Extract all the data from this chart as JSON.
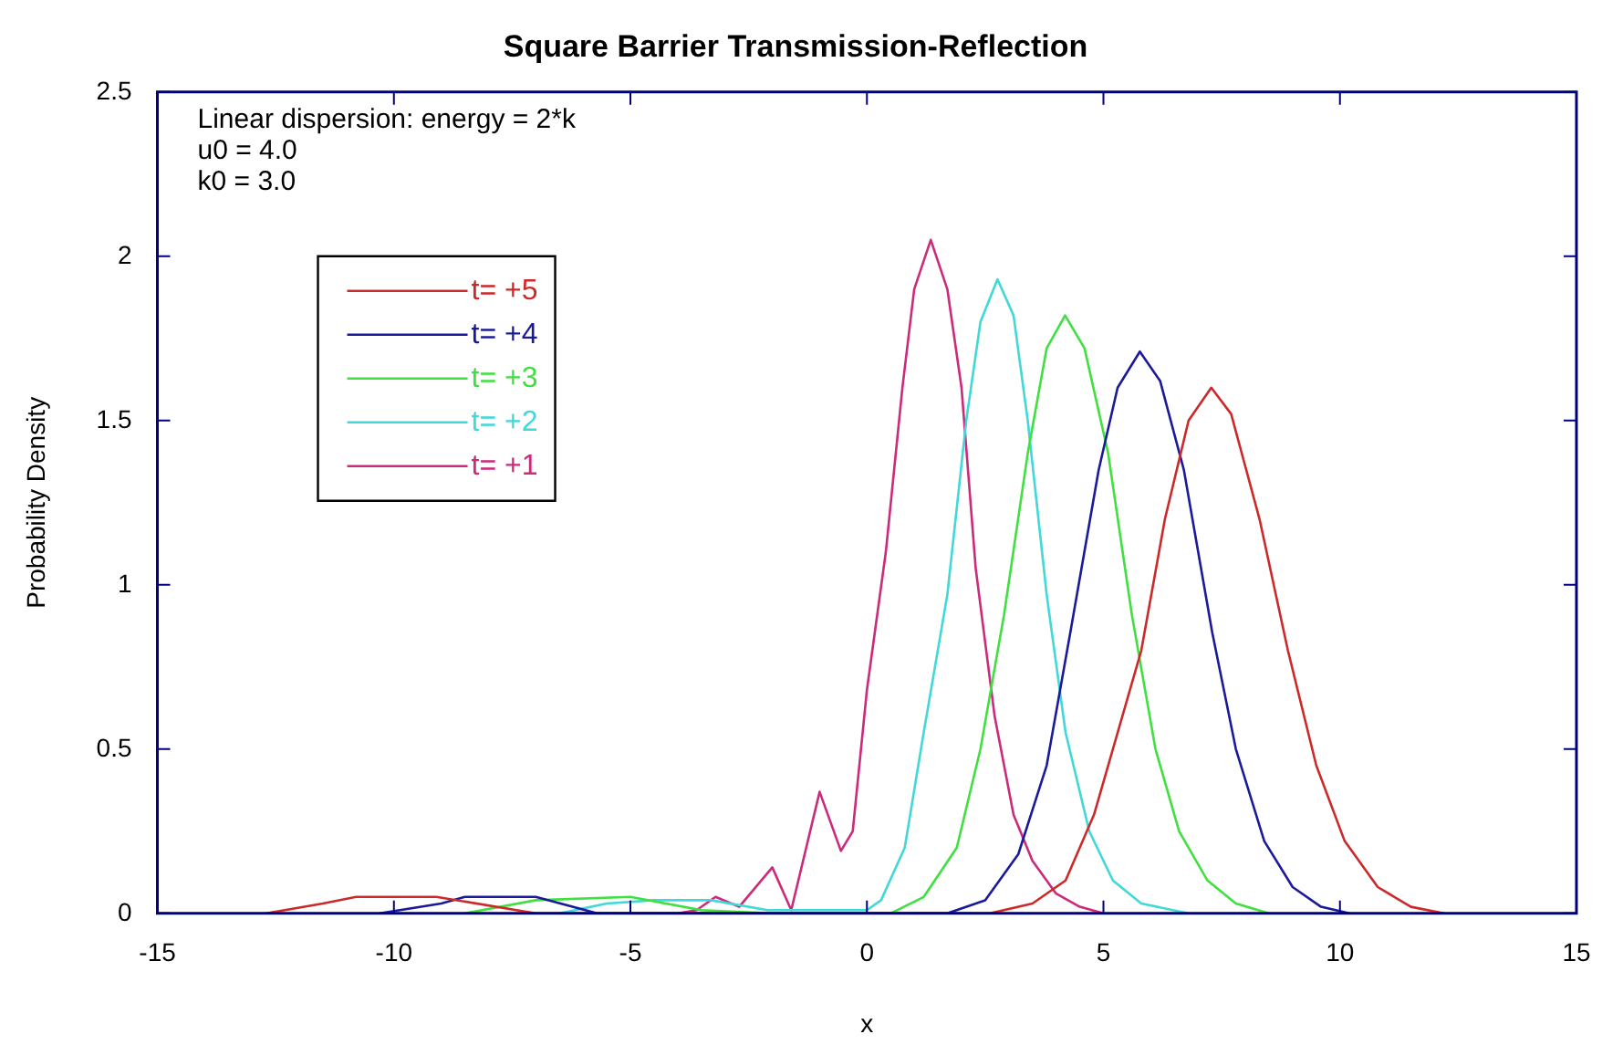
{
  "chart_data": {
    "type": "line",
    "title": "Square Barrier Transmission-Reflection",
    "xlabel": "x",
    "ylabel": "Probability Density",
    "xlim": [
      -15,
      15
    ],
    "xticks": [
      -15,
      -10,
      -5,
      0,
      5,
      10,
      15
    ],
    "ylim": [
      0,
      2.5
    ],
    "yticks": [
      0,
      0.5,
      1,
      1.5,
      2,
      2.5
    ],
    "grid": false,
    "legend": "top left",
    "marker": "none",
    "line_style": "solid",
    "annotations": [
      "Linear dispersion: energy = 2*k",
      "u0 = 4.0",
      "k0 = 3.0"
    ],
    "series": [
      {
        "name": "t= +5",
        "color": "#cc2a2a",
        "x": [
          -12.7,
          -11.5,
          -10.8,
          -9.1,
          -7,
          2.6,
          3.5,
          4.2,
          4.8,
          5.3,
          5.8,
          6.3,
          6.8,
          7.28,
          7.7,
          8.3,
          8.9,
          9.5,
          10.1,
          10.8,
          11.5,
          12.2
        ],
        "values": [
          0,
          0.03,
          0.05,
          0.05,
          0,
          0,
          0.03,
          0.1,
          0.3,
          0.55,
          0.8,
          1.2,
          1.5,
          1.6,
          1.52,
          1.2,
          0.8,
          0.45,
          0.22,
          0.08,
          0.02,
          0
        ]
      },
      {
        "name": "t= +4",
        "color": "#1a1a9a",
        "x": [
          -10.3,
          -9,
          -8.5,
          -7,
          -5.7,
          1.7,
          2.5,
          3.2,
          3.8,
          4.3,
          4.9,
          5.3,
          5.77,
          6.2,
          6.7,
          7.3,
          7.8,
          8.4,
          9.0,
          9.6,
          10.2
        ],
        "values": [
          0,
          0.03,
          0.05,
          0.05,
          0,
          0,
          0.04,
          0.18,
          0.45,
          0.855,
          1.35,
          1.6,
          1.71,
          1.62,
          1.35,
          0.855,
          0.5,
          0.22,
          0.08,
          0.02,
          0
        ]
      },
      {
        "name": "t= +3",
        "color": "#40e040",
        "x": [
          -8.5,
          -7,
          -5,
          -3.5,
          -2,
          0.5,
          1.2,
          1.9,
          2.4,
          2.9,
          3.4,
          3.8,
          4.19,
          4.6,
          5.1,
          5.6,
          6.1,
          6.6,
          7.2,
          7.8,
          8.5
        ],
        "values": [
          0,
          0.04,
          0.05,
          0.01,
          0,
          0,
          0.05,
          0.2,
          0.5,
          0.91,
          1.4,
          1.72,
          1.82,
          1.72,
          1.4,
          0.91,
          0.5,
          0.25,
          0.1,
          0.03,
          0
        ]
      },
      {
        "name": "t= +2",
        "color": "#40d8d8",
        "x": [
          -6.5,
          -5.5,
          -4.5,
          -3.3,
          -2.1,
          0,
          0.3,
          0.8,
          1.2,
          1.7,
          2.1,
          2.4,
          2.76,
          3.1,
          3.4,
          3.8,
          4.2,
          4.7,
          5.2,
          5.8,
          6.8
        ],
        "values": [
          0,
          0.03,
          0.04,
          0.04,
          0.01,
          0.01,
          0.04,
          0.2,
          0.55,
          0.97,
          1.5,
          1.8,
          1.93,
          1.82,
          1.5,
          0.97,
          0.55,
          0.25,
          0.1,
          0.03,
          0
        ]
      },
      {
        "name": "t= +1",
        "color": "#cc2a7a",
        "x": [
          -4,
          -3.6,
          -3.2,
          -2.7,
          -2.0,
          -1.6,
          -1.0,
          -0.55,
          -0.3,
          0,
          0.4,
          0.75,
          1.0,
          1.35,
          1.7,
          2.0,
          2.3,
          2.7,
          3.1,
          3.5,
          4.0,
          4.5,
          5.0
        ],
        "values": [
          0,
          0.01,
          0.05,
          0.02,
          0.14,
          0.01,
          0.37,
          0.19,
          0.25,
          0.68,
          1.1,
          1.6,
          1.9,
          2.05,
          1.9,
          1.6,
          1.05,
          0.6,
          0.3,
          0.16,
          0.06,
          0.02,
          0
        ]
      }
    ]
  }
}
